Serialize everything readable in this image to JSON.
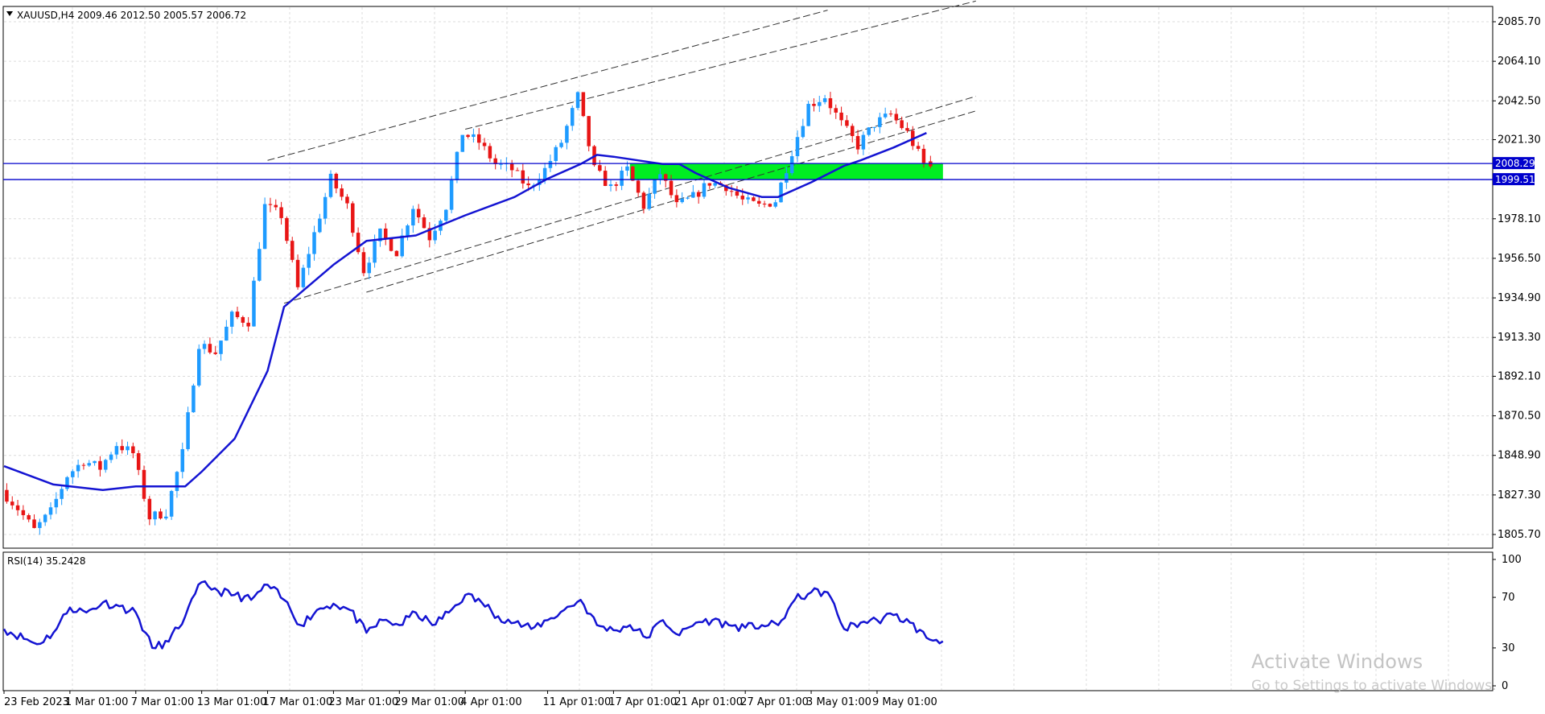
{
  "header": {
    "symbol_line": "XAUUSD,H4  2009.46 2012.50 2005.57 2006.72"
  },
  "chart_data": [
    {
      "type": "candlestick",
      "title": "",
      "symbol": "XAUUSD",
      "timeframe": "H4",
      "ohlc_last": {
        "open": 2009.46,
        "high": 2012.5,
        "low": 2005.57,
        "close": 2006.72
      },
      "ylim": [
        1795,
        2095
      ],
      "y_ticks": [
        "2085.70",
        "2064.10",
        "2042.50",
        "2021.30",
        "1999.51",
        "1978.10",
        "1956.50",
        "1934.90",
        "1913.30",
        "1892.10",
        "1870.50",
        "1848.90",
        "1827.30",
        "1805.70"
      ],
      "x_ticks": [
        "23 Feb 2023",
        "1 Mar 01:00",
        "7 Mar 01:00",
        "13 Mar 01:00",
        "17 Mar 01:00",
        "23 Mar 01:00",
        "29 Mar 01:00",
        "4 Apr 01:00",
        "11 Apr 01:00",
        "17 Apr 01:00",
        "21 Apr 01:00",
        "27 Apr 01:00",
        "3 May 01:00",
        "9 May 01:00"
      ],
      "horizontal_levels": [
        {
          "label": "2008.29",
          "value": 2008.29,
          "color": "#0000cc"
        },
        {
          "label": "1999.51",
          "value": 1999.51,
          "color": "#0000cc"
        }
      ],
      "zone": {
        "from_date": "18 Apr 2023",
        "to_date": "14 May 2023",
        "low": 1999.51,
        "high": 2008.29,
        "color": "#00ee22"
      },
      "moving_average_color": "#1414d2",
      "bull_color": "#1e9bff",
      "bear_color": "#e81515",
      "price_path": [
        {
          "date": "23 Feb 2023",
          "price": 1830
        },
        {
          "date": "24 Feb 2023",
          "price": 1820
        },
        {
          "date": "27 Feb 2023",
          "price": 1808
        },
        {
          "date": "28 Feb 2023",
          "price": 1818
        },
        {
          "date": "1 Mar 2023",
          "price": 1838
        },
        {
          "date": "2 Mar 2023",
          "price": 1846
        },
        {
          "date": "3 Mar 2023",
          "price": 1842
        },
        {
          "date": "6 Mar 2023",
          "price": 1855
        },
        {
          "date": "7 Mar 2023",
          "price": 1850
        },
        {
          "date": "8 Mar 2023",
          "price": 1815
        },
        {
          "date": "9 Mar 2023",
          "price": 1818
        },
        {
          "date": "10 Mar 2023",
          "price": 1850
        },
        {
          "date": "13 Mar 2023",
          "price": 1910
        },
        {
          "date": "14 Mar 2023",
          "price": 1905
        },
        {
          "date": "15 Mar 2023",
          "price": 1925
        },
        {
          "date": "16 Mar 2023",
          "price": 1922
        },
        {
          "date": "17 Mar 2023",
          "price": 1985
        },
        {
          "date": "20 Mar 2023",
          "price": 1980
        },
        {
          "date": "21 Mar 2023",
          "price": 1940
        },
        {
          "date": "22 Mar 2023",
          "price": 1970
        },
        {
          "date": "23 Mar 2023",
          "price": 2000
        },
        {
          "date": "24 Mar 2023",
          "price": 1985
        },
        {
          "date": "27 Mar 2023",
          "price": 1950
        },
        {
          "date": "28 Mar 2023",
          "price": 1970
        },
        {
          "date": "29 Mar 2023",
          "price": 1960
        },
        {
          "date": "30 Mar 2023",
          "price": 1985
        },
        {
          "date": "31 Mar 2023",
          "price": 1968
        },
        {
          "date": "3 Apr 2023",
          "price": 1985
        },
        {
          "date": "4 Apr 2023",
          "price": 2025
        },
        {
          "date": "5 Apr 2023",
          "price": 2020
        },
        {
          "date": "6 Apr 2023",
          "price": 2008
        },
        {
          "date": "7 Apr 2023",
          "price": 2005
        },
        {
          "date": "10 Apr 2023",
          "price": 1995
        },
        {
          "date": "11 Apr 2023",
          "price": 2005
        },
        {
          "date": "12 Apr 2023",
          "price": 2020
        },
        {
          "date": "13 Apr 2023",
          "price": 2045
        },
        {
          "date": "14 Apr 2023",
          "price": 2005
        },
        {
          "date": "17 Apr 2023",
          "price": 1995
        },
        {
          "date": "18 Apr 2023",
          "price": 2005
        },
        {
          "date": "19 Apr 2023",
          "price": 1985
        },
        {
          "date": "20 Apr 2023",
          "price": 2003
        },
        {
          "date": "21 Apr 2023",
          "price": 1985
        },
        {
          "date": "24 Apr 2023",
          "price": 1990
        },
        {
          "date": "25 Apr 2023",
          "price": 1998
        },
        {
          "date": "26 Apr 2023",
          "price": 1996
        },
        {
          "date": "27 Apr 2023",
          "price": 1988
        },
        {
          "date": "28 Apr 2023",
          "price": 1985
        },
        {
          "date": "1 May 2023",
          "price": 1988
        },
        {
          "date": "2 May 2023",
          "price": 2015
        },
        {
          "date": "3 May 2023",
          "price": 2040
        },
        {
          "date": "4 May 2023",
          "price": 2045
        },
        {
          "date": "5 May 2023",
          "price": 2030
        },
        {
          "date": "8 May 2023",
          "price": 2018
        },
        {
          "date": "9 May 2023",
          "price": 2030
        },
        {
          "date": "10 May 2023",
          "price": 2035
        },
        {
          "date": "11 May 2023",
          "price": 2025
        },
        {
          "date": "12 May 2023",
          "price": 2008
        }
      ],
      "moving_average": [
        {
          "date": "23 Feb 2023",
          "value": 1843
        },
        {
          "date": "28 Feb 2023",
          "value": 1833
        },
        {
          "date": "3 Mar 2023",
          "value": 1830
        },
        {
          "date": "7 Mar 2023",
          "value": 1832
        },
        {
          "date": "10 Mar 2023",
          "value": 1832
        },
        {
          "date": "13 Mar 2023",
          "value": 1840
        },
        {
          "date": "15 Mar 2023",
          "value": 1858
        },
        {
          "date": "17 Mar 2023",
          "value": 1895
        },
        {
          "date": "20 Mar 2023",
          "value": 1930
        },
        {
          "date": "23 Mar 2023",
          "value": 1953
        },
        {
          "date": "27 Mar 2023",
          "value": 1966
        },
        {
          "date": "30 Mar 2023",
          "value": 1969
        },
        {
          "date": "4 Apr 2023",
          "value": 1980
        },
        {
          "date": "7 Apr 2023",
          "value": 1990
        },
        {
          "date": "11 Apr 2023",
          "value": 2000
        },
        {
          "date": "13 Apr 2023",
          "value": 2008
        },
        {
          "date": "14 Apr 2023",
          "value": 2013
        },
        {
          "date": "17 Apr 2023",
          "value": 2012
        },
        {
          "date": "20 Apr 2023",
          "value": 2008
        },
        {
          "date": "21 Apr 2023",
          "value": 2008
        },
        {
          "date": "24 Apr 2023",
          "value": 2003
        },
        {
          "date": "26 Apr 2023",
          "value": 1995
        },
        {
          "date": "28 Apr 2023",
          "value": 1990
        },
        {
          "date": "1 May 2023",
          "value": 1990
        },
        {
          "date": "3 May 2023",
          "value": 1998
        },
        {
          "date": "5 May 2023",
          "value": 2007
        },
        {
          "date": "8 May 2023",
          "value": 2010
        },
        {
          "date": "10 May 2023",
          "value": 2017
        },
        {
          "date": "12 May 2023",
          "value": 2025
        }
      ],
      "trend_lines": [
        {
          "from": {
            "date": "17 Mar 2023",
            "price": 2010
          },
          "to": {
            "date": "4 May 2023",
            "price": 2092
          }
        },
        {
          "from": {
            "date": "4 Apr 2023",
            "price": 2027
          },
          "to": {
            "date": "17 May 2023",
            "price": 2097
          }
        },
        {
          "from": {
            "date": "20 Mar 2023",
            "price": 1932
          },
          "to": {
            "date": "17 May 2023",
            "price": 2045
          }
        },
        {
          "from": {
            "date": "27 Mar 2023",
            "price": 1938
          },
          "to": {
            "date": "17 May 2023",
            "price": 2037
          }
        }
      ]
    },
    {
      "type": "line",
      "title": "RSI(14) 35.2428",
      "ylim": [
        0,
        100
      ],
      "y_ticks": [
        "100",
        "70",
        "30",
        "0"
      ],
      "line_color": "#1414d2",
      "series": [
        {
          "date": "23 Feb 2023",
          "value": 45
        },
        {
          "date": "27 Feb 2023",
          "value": 33
        },
        {
          "date": "28 Feb 2023",
          "value": 42
        },
        {
          "date": "1 Mar 2023",
          "value": 62
        },
        {
          "date": "2 Mar 2023",
          "value": 58
        },
        {
          "date": "3 Mar 2023",
          "value": 66
        },
        {
          "date": "6 Mar 2023",
          "value": 63
        },
        {
          "date": "7 Mar 2023",
          "value": 58
        },
        {
          "date": "8 Mar 2023",
          "value": 30
        },
        {
          "date": "9 Mar 2023",
          "value": 35
        },
        {
          "date": "10 Mar 2023",
          "value": 55
        },
        {
          "date": "13 Mar 2023",
          "value": 82
        },
        {
          "date": "14 Mar 2023",
          "value": 75
        },
        {
          "date": "15 Mar 2023",
          "value": 72
        },
        {
          "date": "16 Mar 2023",
          "value": 68
        },
        {
          "date": "17 Mar 2023",
          "value": 80
        },
        {
          "date": "20 Mar 2023",
          "value": 68
        },
        {
          "date": "21 Mar 2023",
          "value": 48
        },
        {
          "date": "22 Mar 2023",
          "value": 60
        },
        {
          "date": "23 Mar 2023",
          "value": 65
        },
        {
          "date": "24 Mar 2023",
          "value": 60
        },
        {
          "date": "27 Mar 2023",
          "value": 42
        },
        {
          "date": "28 Mar 2023",
          "value": 52
        },
        {
          "date": "29 Mar 2023",
          "value": 48
        },
        {
          "date": "30 Mar 2023",
          "value": 58
        },
        {
          "date": "31 Mar 2023",
          "value": 48
        },
        {
          "date": "3 Apr 2023",
          "value": 58
        },
        {
          "date": "4 Apr 2023",
          "value": 72
        },
        {
          "date": "5 Apr 2023",
          "value": 66
        },
        {
          "date": "6 Apr 2023",
          "value": 55
        },
        {
          "date": "7 Apr 2023",
          "value": 50
        },
        {
          "date": "10 Apr 2023",
          "value": 45
        },
        {
          "date": "11 Apr 2023",
          "value": 52
        },
        {
          "date": "12 Apr 2023",
          "value": 60
        },
        {
          "date": "13 Apr 2023",
          "value": 68
        },
        {
          "date": "14 Apr 2023",
          "value": 48
        },
        {
          "date": "17 Apr 2023",
          "value": 44
        },
        {
          "date": "18 Apr 2023",
          "value": 48
        },
        {
          "date": "19 Apr 2023",
          "value": 38
        },
        {
          "date": "20 Apr 2023",
          "value": 52
        },
        {
          "date": "21 Apr 2023",
          "value": 40
        },
        {
          "date": "24 Apr 2023",
          "value": 50
        },
        {
          "date": "25 Apr 2023",
          "value": 52
        },
        {
          "date": "26 Apr 2023",
          "value": 48
        },
        {
          "date": "27 Apr 2023",
          "value": 46
        },
        {
          "date": "28 Apr 2023",
          "value": 48
        },
        {
          "date": "1 May 2023",
          "value": 48
        },
        {
          "date": "2 May 2023",
          "value": 68
        },
        {
          "date": "3 May 2023",
          "value": 74
        },
        {
          "date": "4 May 2023",
          "value": 74
        },
        {
          "date": "5 May 2023",
          "value": 45
        },
        {
          "date": "8 May 2023",
          "value": 50
        },
        {
          "date": "9 May 2023",
          "value": 52
        },
        {
          "date": "10 May 2023",
          "value": 56
        },
        {
          "date": "11 May 2023",
          "value": 50
        },
        {
          "date": "12 May 2023",
          "value": 38
        },
        {
          "date": "14 May 2023",
          "value": 35.2
        }
      ]
    }
  ],
  "watermark": {
    "title": "Activate Windows",
    "subtitle": "Go to Settings to activate Windows."
  }
}
